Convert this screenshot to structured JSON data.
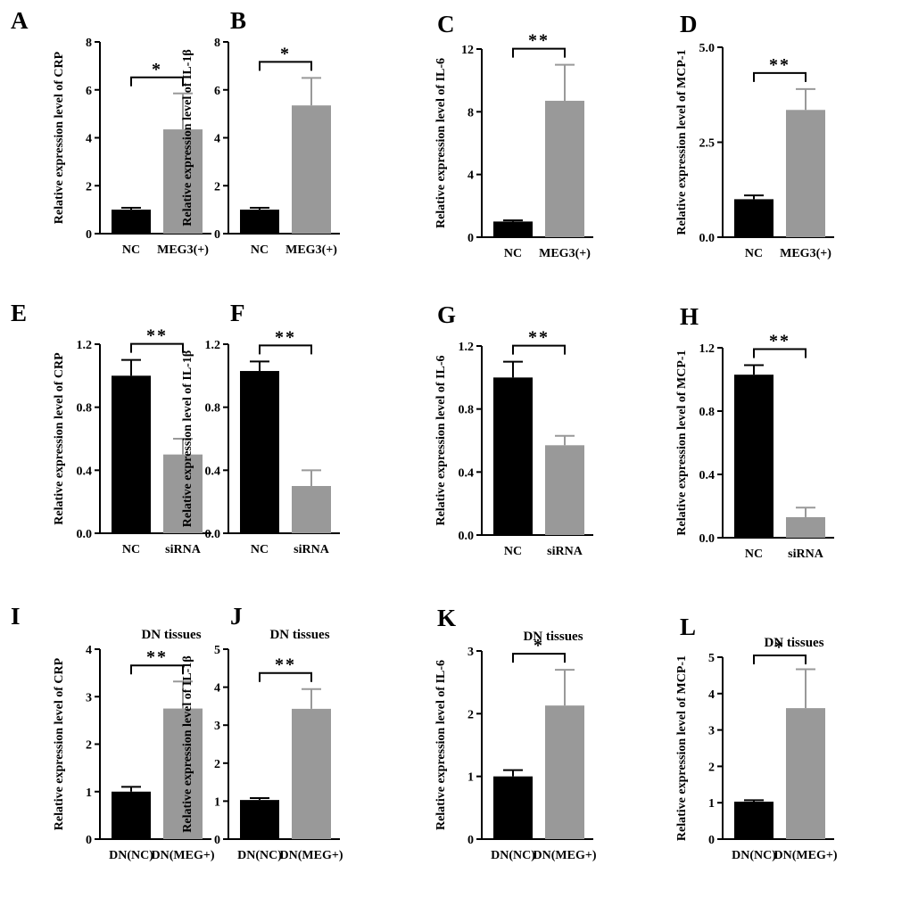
{
  "figure": {
    "name": "MEG3 inflammatory factor expression panels"
  },
  "colors": {
    "control": "#000000",
    "treatment": "#999999",
    "axis": "#000000"
  },
  "chart_data": [
    {
      "type": "bar",
      "panel": "A",
      "title": "",
      "xlabel": "",
      "ylabel": "Relative expression level of CRP",
      "categories": [
        "NC",
        "MEG3(+)"
      ],
      "values": [
        1.0,
        4.35
      ],
      "errors": [
        0.08,
        1.5
      ],
      "ylim": [
        0,
        8
      ],
      "yticks": [
        "0",
        "2",
        "4",
        "6",
        "8"
      ],
      "significance": "*"
    },
    {
      "type": "bar",
      "panel": "B",
      "title": "",
      "xlabel": "",
      "ylabel": "Relative expression level of IL-1β",
      "categories": [
        "NC",
        "MEG3(+)"
      ],
      "values": [
        1.0,
        5.35
      ],
      "errors": [
        0.08,
        1.15
      ],
      "ylim": [
        0,
        8
      ],
      "yticks": [
        "0",
        "2",
        "4",
        "6",
        "8"
      ],
      "significance": "*"
    },
    {
      "type": "bar",
      "panel": "C",
      "title": "",
      "xlabel": "",
      "ylabel": "Relative expression level of IL-6",
      "categories": [
        "NC",
        "MEG3(+)"
      ],
      "values": [
        1.0,
        8.7
      ],
      "errors": [
        0.07,
        2.3
      ],
      "ylim": [
        0,
        12
      ],
      "yticks": [
        "0",
        "4",
        "8",
        "12"
      ],
      "significance": "**"
    },
    {
      "type": "bar",
      "panel": "D",
      "title": "",
      "xlabel": "",
      "ylabel": "Relative expression level of MCP-1",
      "categories": [
        "NC",
        "MEG3(+)"
      ],
      "values": [
        1.0,
        3.35
      ],
      "errors": [
        0.1,
        0.55
      ],
      "ylim": [
        0,
        5
      ],
      "yticks": [
        "0.0",
        "2.5",
        "5.0"
      ],
      "significance": "**"
    },
    {
      "type": "bar",
      "panel": "E",
      "title": "",
      "xlabel": "",
      "ylabel": "Relative expression level of CRP",
      "categories": [
        "NC",
        "siRNA"
      ],
      "values": [
        1.0,
        0.5
      ],
      "errors": [
        0.1,
        0.1
      ],
      "ylim": [
        0,
        1.2
      ],
      "yticks": [
        "0.0",
        "0.4",
        "0.8",
        "1.2"
      ],
      "significance": "**"
    },
    {
      "type": "bar",
      "panel": "F",
      "title": "",
      "xlabel": "",
      "ylabel": "Relative expression level of IL-1β",
      "categories": [
        "NC",
        "siRNA"
      ],
      "values": [
        1.03,
        0.3
      ],
      "errors": [
        0.06,
        0.1
      ],
      "ylim": [
        0,
        1.2
      ],
      "yticks": [
        "0.0",
        "0.4",
        "0.8",
        "1.2"
      ],
      "significance": "**"
    },
    {
      "type": "bar",
      "panel": "G",
      "title": "",
      "xlabel": "",
      "ylabel": "Relative expression level of IL-6",
      "categories": [
        "NC",
        "siRNA"
      ],
      "values": [
        1.0,
        0.57
      ],
      "errors": [
        0.1,
        0.06
      ],
      "ylim": [
        0,
        1.2
      ],
      "yticks": [
        "0.0",
        "0.4",
        "0.8",
        "1.2"
      ],
      "significance": "**"
    },
    {
      "type": "bar",
      "panel": "H",
      "title": "",
      "xlabel": "",
      "ylabel": "Relative expression level of MCP-1",
      "categories": [
        "NC",
        "siRNA"
      ],
      "values": [
        1.03,
        0.13
      ],
      "errors": [
        0.06,
        0.06
      ],
      "ylim": [
        0,
        1.2
      ],
      "yticks": [
        "0.0",
        "0.4",
        "0.8",
        "1.2"
      ],
      "significance": "**"
    },
    {
      "type": "bar",
      "panel": "I",
      "title": "DN tissues",
      "xlabel": "",
      "ylabel": "Relative expression level of CRP",
      "categories": [
        "DN(NC)",
        "DN(MEG+)"
      ],
      "values": [
        1.0,
        2.75
      ],
      "errors": [
        0.1,
        0.57
      ],
      "ylim": [
        0,
        4
      ],
      "yticks": [
        "0",
        "1",
        "2",
        "3",
        "4"
      ],
      "significance": "**"
    },
    {
      "type": "bar",
      "panel": "J",
      "title": "DN tissues",
      "xlabel": "",
      "ylabel": "Relative expression level of IL-1β",
      "categories": [
        "DN(NC)",
        "DN(MEG+)"
      ],
      "values": [
        1.03,
        3.43
      ],
      "errors": [
        0.05,
        0.52
      ],
      "ylim": [
        0,
        5
      ],
      "yticks": [
        "0",
        "1",
        "2",
        "3",
        "4",
        "5"
      ],
      "significance": "**"
    },
    {
      "type": "bar",
      "panel": "K",
      "title": "DN tissues",
      "xlabel": "",
      "ylabel": "Relative expression level of IL-6",
      "categories": [
        "DN(NC)",
        "DN(MEG+)"
      ],
      "values": [
        1.0,
        2.13
      ],
      "errors": [
        0.1,
        0.57
      ],
      "ylim": [
        0,
        3
      ],
      "yticks": [
        "0",
        "1",
        "2",
        "3"
      ],
      "significance": "*"
    },
    {
      "type": "bar",
      "panel": "L",
      "title": "DN tissues",
      "xlabel": "",
      "ylabel": "Relative expression level of MCP-1",
      "categories": [
        "DN(NC)",
        "DN(MEG+)"
      ],
      "values": [
        1.03,
        3.6
      ],
      "errors": [
        0.04,
        1.07
      ],
      "ylim": [
        0,
        5
      ],
      "yticks": [
        "0",
        "1",
        "2",
        "3",
        "4",
        "5"
      ],
      "significance": "*"
    }
  ]
}
